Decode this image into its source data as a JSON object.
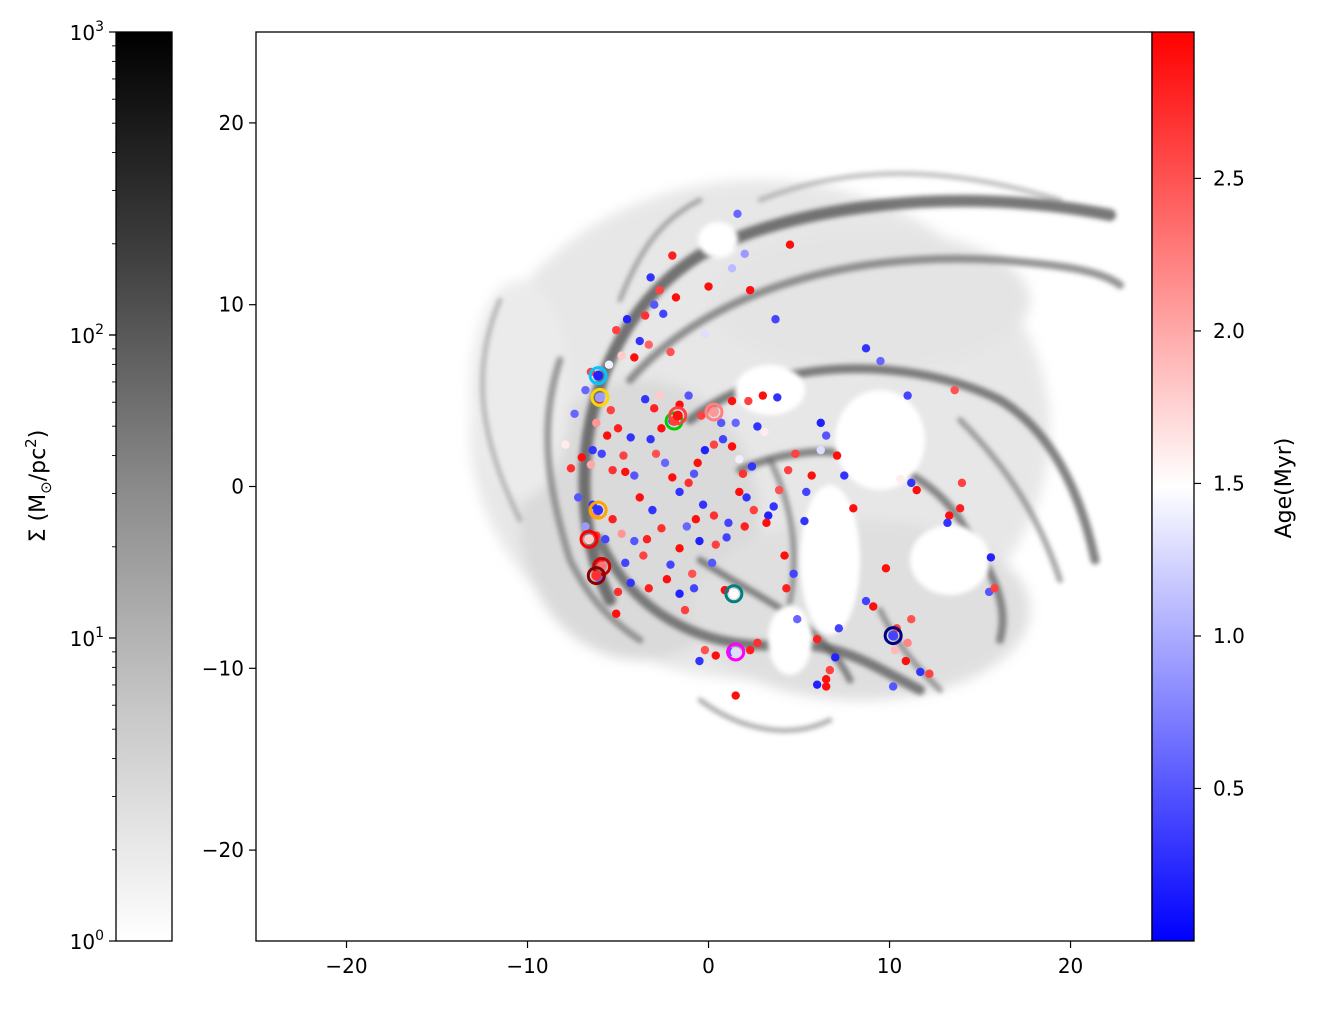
{
  "chart_data": {
    "type": "scatter",
    "title": "",
    "main_axes": {
      "xlim": [
        -25,
        24.5
      ],
      "ylim": [
        -25,
        25
      ],
      "xticks": [
        -20,
        -10,
        0,
        10,
        20
      ],
      "yticks": [
        -20,
        -10,
        0,
        10,
        20
      ],
      "grid": false,
      "background": "gas surface density map (grey, log scale) of a spiral galaxy"
    },
    "density_colorbar": {
      "label_text": "Σ (M",
      "label_sun": "⊙",
      "label_unit": "/pc",
      "label_sup": "2",
      "label_close": ")",
      "scale": "log",
      "range": [
        1,
        1000
      ],
      "ticks": [
        {
          "base": "10",
          "exp": "0"
        },
        {
          "base": "10",
          "exp": "1"
        },
        {
          "base": "10",
          "exp": "2"
        },
        {
          "base": "10",
          "exp": "3"
        }
      ],
      "colormap": [
        "#ffffff",
        "#000000"
      ],
      "placement": "left"
    },
    "age_colorbar": {
      "label": "Age(Myr)",
      "range": [
        0.0,
        2.98
      ],
      "ticks": [
        "0.5",
        "1.0",
        "1.5",
        "2.0",
        "2.5"
      ],
      "colormap": [
        "#0000ff",
        "#ffffff",
        "#ff0000"
      ],
      "placement": "right"
    },
    "clusters": [
      {
        "x": 1.6,
        "y": 15.0,
        "age": 0.6
      },
      {
        "x": 2.0,
        "y": 12.8,
        "age": 0.9
      },
      {
        "x": 4.5,
        "y": 13.3,
        "age": 2.9
      },
      {
        "x": 1.3,
        "y": 12.0,
        "age": 1.1
      },
      {
        "x": -2.0,
        "y": 12.7,
        "age": 2.8
      },
      {
        "x": -3.2,
        "y": 11.5,
        "age": 0.3
      },
      {
        "x": -2.7,
        "y": 10.8,
        "age": 2.6
      },
      {
        "x": -1.8,
        "y": 10.4,
        "age": 2.9
      },
      {
        "x": -3.0,
        "y": 10.0,
        "age": 0.5
      },
      {
        "x": -3.5,
        "y": 9.4,
        "age": 2.7
      },
      {
        "x": -4.5,
        "y": 9.2,
        "age": 0.2
      },
      {
        "x": -5.1,
        "y": 8.6,
        "age": 2.6
      },
      {
        "x": -2.5,
        "y": 9.5,
        "age": 0.4
      },
      {
        "x": 0.0,
        "y": 11.0,
        "age": 2.9
      },
      {
        "x": 2.3,
        "y": 10.8,
        "age": 2.9
      },
      {
        "x": 3.7,
        "y": 9.2,
        "age": 0.4
      },
      {
        "x": -3.8,
        "y": 8.0,
        "age": 0.3
      },
      {
        "x": -3.3,
        "y": 7.8,
        "age": 2.4
      },
      {
        "x": -4.8,
        "y": 7.2,
        "age": 1.8
      },
      {
        "x": -2.1,
        "y": 7.4,
        "age": 2.5
      },
      {
        "x": -0.2,
        "y": 8.4,
        "age": 1.3
      },
      {
        "x": -4.1,
        "y": 7.1,
        "age": 2.9
      },
      {
        "x": -5.5,
        "y": 6.7,
        "age": 1.4
      },
      {
        "x": -6.5,
        "y": 6.3,
        "age": 2.6
      },
      {
        "x": -6.8,
        "y": 5.3,
        "age": 0.6
      },
      {
        "x": -6.0,
        "y": 4.8,
        "age": 2.9
      },
      {
        "x": -5.4,
        "y": 4.2,
        "age": 2.6
      },
      {
        "x": -7.4,
        "y": 4.0,
        "age": 0.6
      },
      {
        "x": -6.2,
        "y": 3.5,
        "age": 2.1
      },
      {
        "x": -5.0,
        "y": 3.2,
        "age": 2.8
      },
      {
        "x": -7.9,
        "y": 2.3,
        "age": 1.6
      },
      {
        "x": -6.4,
        "y": 2.0,
        "age": 0.3
      },
      {
        "x": -7.0,
        "y": 1.6,
        "age": 2.9
      },
      {
        "x": -7.6,
        "y": 1.0,
        "age": 2.7
      },
      {
        "x": -6.5,
        "y": 1.2,
        "age": 2.0
      },
      {
        "x": -4.6,
        "y": 0.8,
        "age": 2.9
      },
      {
        "x": -7.2,
        "y": -0.6,
        "age": 0.5
      },
      {
        "x": -6.4,
        "y": -1.0,
        "age": 0.3
      },
      {
        "x": -6.2,
        "y": -1.5,
        "age": 2.2
      },
      {
        "x": -5.3,
        "y": -1.8,
        "age": 2.8
      },
      {
        "x": -6.8,
        "y": -2.2,
        "age": 0.9
      },
      {
        "x": -6.2,
        "y": -2.7,
        "age": 2.7
      },
      {
        "x": -5.7,
        "y": -2.9,
        "age": 0.4
      },
      {
        "x": -4.8,
        "y": -2.6,
        "age": 2.1
      },
      {
        "x": -4.1,
        "y": -3.0,
        "age": 0.5
      },
      {
        "x": -3.6,
        "y": -3.8,
        "age": 2.6
      },
      {
        "x": -4.6,
        "y": -4.2,
        "age": 0.4
      },
      {
        "x": -6.0,
        "y": -4.1,
        "age": 2.8
      },
      {
        "x": -6.0,
        "y": -5.1,
        "age": 0.6
      },
      {
        "x": -5.0,
        "y": -5.8,
        "age": 2.7
      },
      {
        "x": -4.3,
        "y": -5.3,
        "age": 0.3
      },
      {
        "x": -3.3,
        "y": -5.6,
        "age": 2.8
      },
      {
        "x": -2.3,
        "y": -5.1,
        "age": 2.9
      },
      {
        "x": -1.6,
        "y": -5.9,
        "age": 0.2
      },
      {
        "x": -5.1,
        "y": -7.0,
        "age": 2.9
      },
      {
        "x": -0.8,
        "y": -5.6,
        "age": 0.4
      },
      {
        "x": -1.3,
        "y": -6.8,
        "age": 2.6
      },
      {
        "x": -0.2,
        "y": -9.0,
        "age": 2.5
      },
      {
        "x": 0.4,
        "y": -9.3,
        "age": 2.9
      },
      {
        "x": 1.2,
        "y": -9.1,
        "age": 0.5
      },
      {
        "x": 2.3,
        "y": -9.0,
        "age": 2.8
      },
      {
        "x": 2.7,
        "y": -8.6,
        "age": 2.7
      },
      {
        "x": -0.5,
        "y": -9.6,
        "age": 0.3
      },
      {
        "x": 1.5,
        "y": -11.5,
        "age": 2.9
      },
      {
        "x": 4.2,
        "y": -3.8,
        "age": 2.9
      },
      {
        "x": 4.7,
        "y": -4.8,
        "age": 0.4
      },
      {
        "x": 4.3,
        "y": -5.6,
        "age": 2.8
      },
      {
        "x": 4.9,
        "y": -7.3,
        "age": 0.6
      },
      {
        "x": 6.0,
        "y": -8.4,
        "age": 2.8
      },
      {
        "x": 7.2,
        "y": -7.8,
        "age": 0.4
      },
      {
        "x": 7.0,
        "y": -9.4,
        "age": 0.2
      },
      {
        "x": 6.7,
        "y": -10.1,
        "age": 2.6
      },
      {
        "x": 6.5,
        "y": -10.6,
        "age": 2.9
      },
      {
        "x": 6.0,
        "y": -10.9,
        "age": 0.2
      },
      {
        "x": 6.5,
        "y": -11.0,
        "age": 2.9
      },
      {
        "x": 8.7,
        "y": -6.3,
        "age": 0.4
      },
      {
        "x": 9.1,
        "y": -6.6,
        "age": 2.9
      },
      {
        "x": 9.8,
        "y": -4.5,
        "age": 2.9
      },
      {
        "x": 10.4,
        "y": -7.8,
        "age": 2.6
      },
      {
        "x": 11.2,
        "y": -7.3,
        "age": 2.5
      },
      {
        "x": 11.0,
        "y": -8.6,
        "age": 2.2
      },
      {
        "x": 10.3,
        "y": -9.0,
        "age": 1.9
      },
      {
        "x": 10.9,
        "y": -9.6,
        "age": 2.9
      },
      {
        "x": 11.7,
        "y": -10.2,
        "age": 0.3
      },
      {
        "x": 12.2,
        "y": -10.3,
        "age": 2.6
      },
      {
        "x": 10.2,
        "y": -11.0,
        "age": 0.5
      },
      {
        "x": 15.6,
        "y": -3.9,
        "age": 0.2
      },
      {
        "x": 15.5,
        "y": -5.8,
        "age": 0.5
      },
      {
        "x": 15.8,
        "y": -5.6,
        "age": 2.6
      },
      {
        "x": 13.9,
        "y": -1.2,
        "age": 2.8
      },
      {
        "x": 13.3,
        "y": -1.6,
        "age": 2.9
      },
      {
        "x": 13.2,
        "y": -2.0,
        "age": 0.3
      },
      {
        "x": 14.0,
        "y": 0.2,
        "age": 2.6
      },
      {
        "x": 11.2,
        "y": 0.2,
        "age": 0.3
      },
      {
        "x": 10.6,
        "y": 0.4,
        "age": 1.6
      },
      {
        "x": 11.5,
        "y": -0.2,
        "age": 2.9
      },
      {
        "x": 13.6,
        "y": 5.3,
        "age": 2.5
      },
      {
        "x": 11.0,
        "y": 5.0,
        "age": 0.4
      },
      {
        "x": 9.5,
        "y": 6.9,
        "age": 0.6
      },
      {
        "x": 8.7,
        "y": 7.6,
        "age": 0.3
      },
      {
        "x": 7.5,
        "y": 0.6,
        "age": 0.3
      },
      {
        "x": 8.0,
        "y": -1.2,
        "age": 2.9
      },
      {
        "x": 7.1,
        "y": 1.7,
        "age": 2.9
      },
      {
        "x": 6.2,
        "y": 3.5,
        "age": 0.2
      },
      {
        "x": 6.5,
        "y": 2.8,
        "age": 0.5
      },
      {
        "x": 6.2,
        "y": 2.0,
        "age": 1.3
      },
      {
        "x": 4.4,
        "y": 0.9,
        "age": 2.6
      },
      {
        "x": 3.9,
        "y": -0.2,
        "age": 2.5
      },
      {
        "x": 3.6,
        "y": -1.1,
        "age": 0.3
      },
      {
        "x": 3.3,
        "y": -1.6,
        "age": 0.2
      },
      {
        "x": 3.2,
        "y": -2.0,
        "age": 2.9
      },
      {
        "x": 2.5,
        "y": -1.3,
        "age": 2.6
      },
      {
        "x": 2.1,
        "y": -0.6,
        "age": 0.3
      },
      {
        "x": 1.7,
        "y": -0.3,
        "age": 2.9
      },
      {
        "x": 1.9,
        "y": 0.7,
        "age": 2.7
      },
      {
        "x": 2.4,
        "y": 1.1,
        "age": 0.3
      },
      {
        "x": 1.7,
        "y": 1.5,
        "age": 1.4
      },
      {
        "x": 1.3,
        "y": 2.2,
        "age": 2.9
      },
      {
        "x": 0.8,
        "y": 2.6,
        "age": 0.4
      },
      {
        "x": 0.3,
        "y": 2.3,
        "age": 2.6
      },
      {
        "x": -0.2,
        "y": 2.0,
        "age": 0.2
      },
      {
        "x": -0.6,
        "y": 1.3,
        "age": 2.9
      },
      {
        "x": -0.8,
        "y": 0.7,
        "age": 0.5
      },
      {
        "x": -1.1,
        "y": 0.2,
        "age": 2.7
      },
      {
        "x": -1.6,
        "y": -0.3,
        "age": 0.3
      },
      {
        "x": -2.0,
        "y": 0.5,
        "age": 2.9
      },
      {
        "x": -2.4,
        "y": 1.3,
        "age": 0.6
      },
      {
        "x": -2.9,
        "y": 1.8,
        "age": 2.5
      },
      {
        "x": -3.2,
        "y": 2.6,
        "age": 0.3
      },
      {
        "x": -2.6,
        "y": 3.2,
        "age": 2.9
      },
      {
        "x": -2.0,
        "y": 3.6,
        "age": 0.4
      },
      {
        "x": -1.6,
        "y": 4.5,
        "age": 2.9
      },
      {
        "x": -1.1,
        "y": 5.0,
        "age": 0.5
      },
      {
        "x": -0.4,
        "y": 3.9,
        "age": 2.6
      },
      {
        "x": 0.1,
        "y": 4.3,
        "age": 2.4
      },
      {
        "x": -3.5,
        "y": 4.8,
        "age": 0.3
      },
      {
        "x": -3.0,
        "y": 4.3,
        "age": 2.8
      },
      {
        "x": -2.7,
        "y": 5.0,
        "age": 1.8
      },
      {
        "x": 0.7,
        "y": 3.5,
        "age": 0.5
      },
      {
        "x": 1.3,
        "y": 4.7,
        "age": 2.9
      },
      {
        "x": 1.5,
        "y": 3.5,
        "age": 0.6
      },
      {
        "x": 2.2,
        "y": 4.7,
        "age": 2.6
      },
      {
        "x": 2.7,
        "y": 3.3,
        "age": 0.3
      },
      {
        "x": 3.1,
        "y": 3.0,
        "age": 1.6
      },
      {
        "x": 3.0,
        "y": 5.0,
        "age": 2.9
      },
      {
        "x": 3.8,
        "y": 4.9,
        "age": 0.3
      },
      {
        "x": 2.0,
        "y": -2.2,
        "age": 2.8
      },
      {
        "x": 1.1,
        "y": -2.0,
        "age": 0.4
      },
      {
        "x": 0.3,
        "y": -1.6,
        "age": 2.7
      },
      {
        "x": -0.3,
        "y": -1.0,
        "age": 0.3
      },
      {
        "x": -0.7,
        "y": -1.8,
        "age": 2.9
      },
      {
        "x": -1.2,
        "y": -2.2,
        "age": 0.6
      },
      {
        "x": -1.6,
        "y": -3.4,
        "age": 2.9
      },
      {
        "x": -0.5,
        "y": -3.0,
        "age": 0.2
      },
      {
        "x": 0.4,
        "y": -3.2,
        "age": 2.6
      },
      {
        "x": 1.0,
        "y": -2.8,
        "age": 0.4
      },
      {
        "x": -2.6,
        "y": -2.3,
        "age": 2.7
      },
      {
        "x": -3.1,
        "y": -1.3,
        "age": 0.3
      },
      {
        "x": -3.8,
        "y": -0.6,
        "age": 2.9
      },
      {
        "x": -4.1,
        "y": 0.6,
        "age": 0.5
      },
      {
        "x": -4.7,
        "y": 1.7,
        "age": 2.6
      },
      {
        "x": -4.3,
        "y": 2.7,
        "age": 0.3
      },
      {
        "x": -5.6,
        "y": 2.8,
        "age": 2.9
      },
      {
        "x": -5.9,
        "y": 1.8,
        "age": 0.4
      },
      {
        "x": -5.3,
        "y": 0.9,
        "age": 2.7
      },
      {
        "x": -3.4,
        "y": -2.9,
        "age": 2.8
      },
      {
        "x": -2.1,
        "y": -4.3,
        "age": 0.4
      },
      {
        "x": -0.9,
        "y": -4.8,
        "age": 2.5
      },
      {
        "x": 0.2,
        "y": -4.2,
        "age": 0.5
      },
      {
        "x": 0.9,
        "y": -5.7,
        "age": 2.9
      },
      {
        "x": 5.3,
        "y": -1.9,
        "age": 0.3
      },
      {
        "x": 5.7,
        "y": 0.6,
        "age": 2.9
      },
      {
        "x": 5.4,
        "y": -0.3,
        "age": 0.4
      },
      {
        "x": 4.8,
        "y": 1.8,
        "age": 2.6
      }
    ],
    "highlighted_clusters": [
      {
        "x": -6.1,
        "y": 6.1,
        "ring": "#00c8ff",
        "age": 0.2
      },
      {
        "x": -6.0,
        "y": 4.9,
        "ring": "#ffd700",
        "age": 0.9
      },
      {
        "x": -1.9,
        "y": 3.6,
        "ring": "#00cc00",
        "age": 2.6
      },
      {
        "x": 0.3,
        "y": 4.1,
        "ring": "#ff8080",
        "age": 2.1
      },
      {
        "x": -6.1,
        "y": -1.3,
        "ring": "#ffa500",
        "age": 0.3
      },
      {
        "x": -6.6,
        "y": -2.9,
        "ring": "#ff0000",
        "age": 1.8
      },
      {
        "x": -5.9,
        "y": -4.4,
        "ring": "#cc0000",
        "age": 2.3
      },
      {
        "x": 1.4,
        "y": -5.9,
        "ring": "#008080",
        "age": 1.5
      },
      {
        "x": 1.5,
        "y": -9.1,
        "ring": "#ff00ff",
        "age": 1.3
      },
      {
        "x": 10.2,
        "y": -8.2,
        "ring": "#000080",
        "age": 0.4
      },
      {
        "x": -1.7,
        "y": 3.9,
        "ring": "#ff4040",
        "age": 2.9
      },
      {
        "x": -6.2,
        "y": -4.9,
        "ring": "#8b0000",
        "age": 2.7
      }
    ]
  }
}
